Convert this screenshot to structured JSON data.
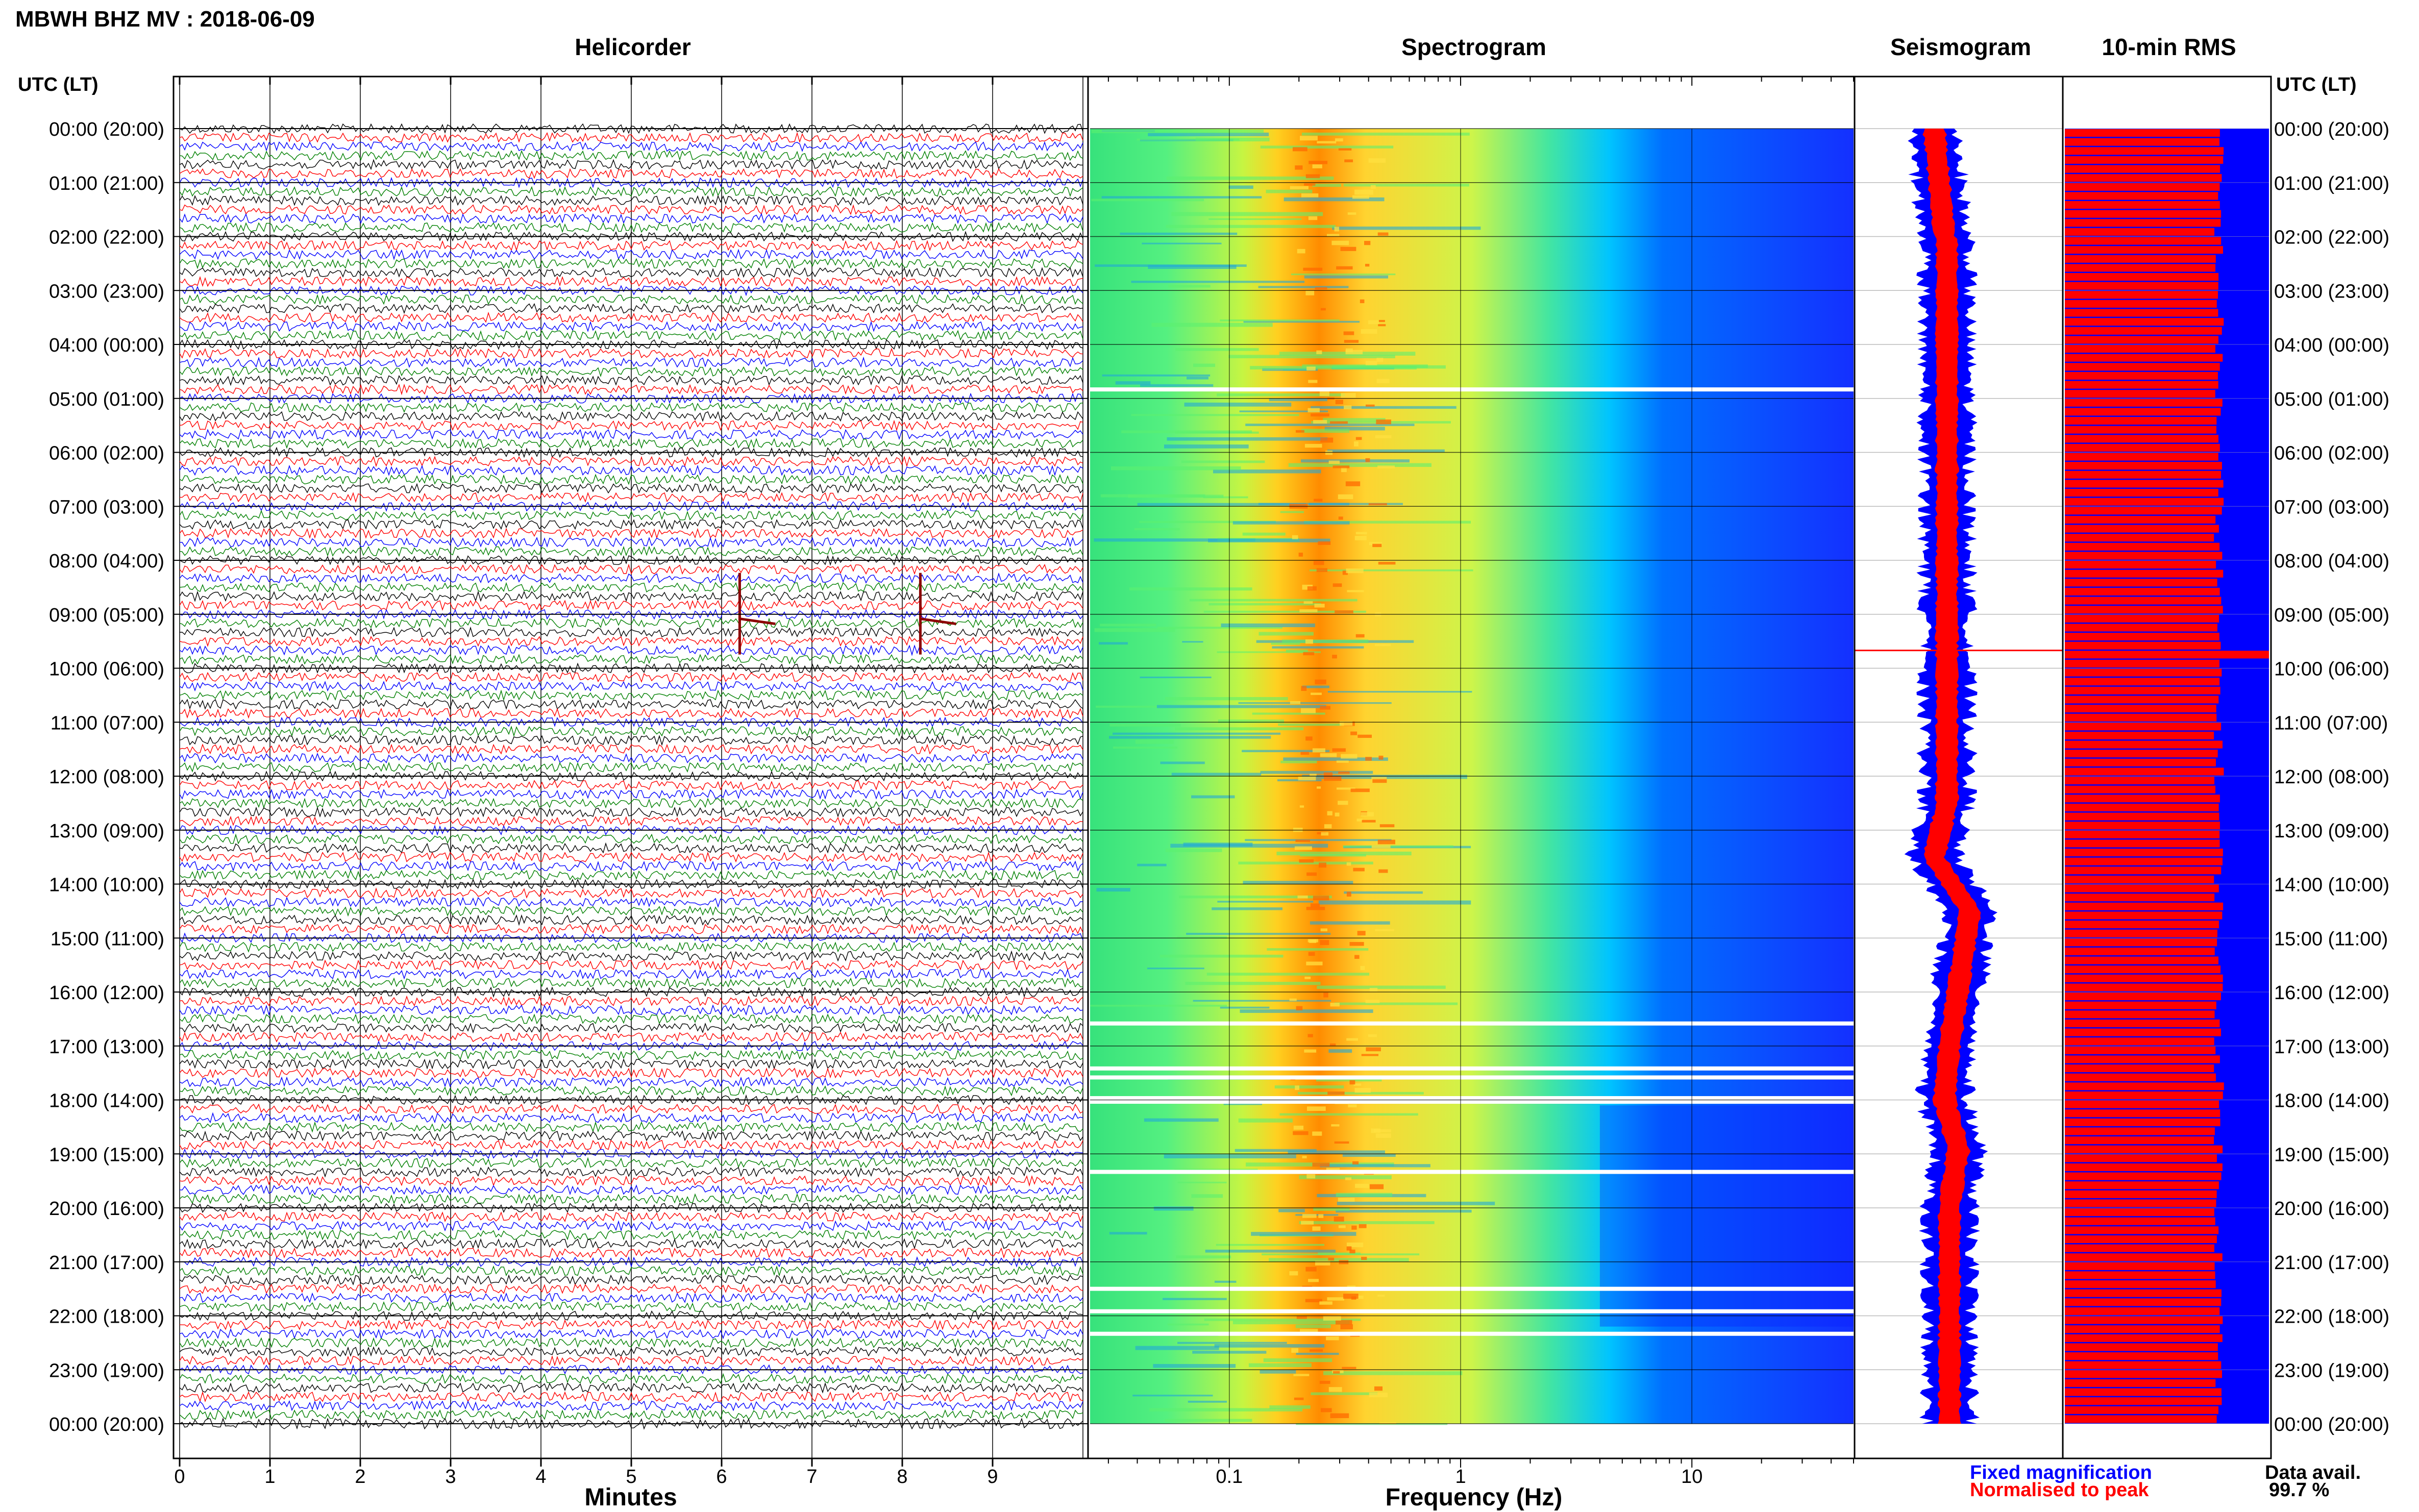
{
  "station_title": "MBWH BHZ MV : 2018-06-09",
  "left_axis_label": "UTC (LT)",
  "right_axis_label": "UTC (LT)",
  "time_labels": [
    "00:00 (20:00)",
    "01:00 (21:00)",
    "02:00 (22:00)",
    "03:00 (23:00)",
    "04:00 (00:00)",
    "05:00 (01:00)",
    "06:00 (02:00)",
    "07:00 (03:00)",
    "08:00 (04:00)",
    "09:00 (05:00)",
    "10:00 (06:00)",
    "11:00 (07:00)",
    "12:00 (08:00)",
    "13:00 (09:00)",
    "14:00 (10:00)",
    "15:00 (11:00)",
    "16:00 (12:00)",
    "17:00 (13:00)",
    "18:00 (14:00)",
    "19:00 (15:00)",
    "20:00 (16:00)",
    "21:00 (17:00)",
    "22:00 (18:00)",
    "23:00 (19:00)",
    "00:00 (20:00)"
  ],
  "legend": {
    "fixed_label": "Fixed magnification",
    "normalised_label": "Normalised to peak",
    "fixed_color": "#0000ff",
    "normalised_color": "#ff0000"
  },
  "availability": {
    "label": "Data avail.",
    "value": "99.7 %"
  },
  "chart_data": [
    {
      "type": "line",
      "title": "Helicorder",
      "xlabel": "Minutes",
      "ylabel": "UTC (LT)",
      "xlim": [
        0,
        10
      ],
      "x_ticks": [
        "0",
        "1",
        "2",
        "3",
        "4",
        "5",
        "6",
        "7",
        "8",
        "9"
      ],
      "rows_per_hour": 6,
      "row_colors": [
        "#000000",
        "#ff0000",
        "#0000ff",
        "#008000"
      ],
      "events": [
        {
          "time_utc": "09:00-09:10",
          "minute": 6.2
        },
        {
          "time_utc": "09:00-09:10",
          "minute": 8.2
        }
      ]
    },
    {
      "type": "heatmap",
      "title": "Spectrogram",
      "xlabel": "Frequency (Hz)",
      "x_scale": "log",
      "xlim": [
        0.025,
        50
      ],
      "x_ticks": [
        "0.1",
        "1",
        "10"
      ],
      "colormap": [
        "#40ff60",
        "#ffff30",
        "#ff8a00",
        "#00c8ff",
        "#0030ff"
      ],
      "peak_band_hz": [
        0.2,
        0.35
      ],
      "data_gaps_utc": [
        "04:50",
        "16:35",
        "17:25",
        "17:35",
        "17:58",
        "18:02",
        "19:20",
        "21:30",
        "21:55",
        "22:20"
      ]
    },
    {
      "type": "area",
      "title": "Seismogram",
      "series": [
        {
          "name": "Fixed magnification",
          "color": "#0000ff"
        },
        {
          "name": "Normalised to peak",
          "color": "#ff0000"
        }
      ]
    },
    {
      "type": "bar",
      "title": "10-min RMS",
      "orientation": "horizontal",
      "series": [
        {
          "name": "Fixed magnification",
          "color": "#0000ff"
        },
        {
          "name": "Normalised to peak",
          "color": "#ff0000"
        }
      ],
      "peak_time_utc": "09:40"
    }
  ]
}
